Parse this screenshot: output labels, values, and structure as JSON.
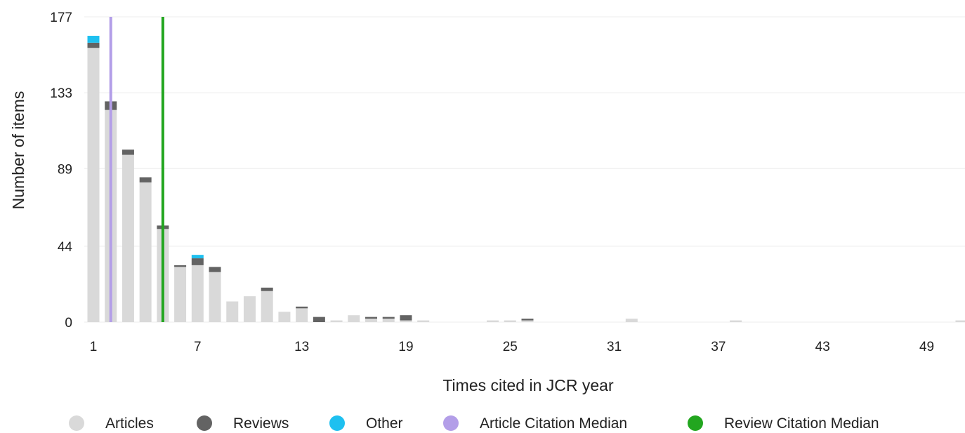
{
  "chart_data": {
    "type": "bar",
    "stacked": true,
    "title": "",
    "xlabel": "Times cited in JCR year",
    "ylabel": "Number of items",
    "x": [
      1,
      2,
      3,
      4,
      5,
      6,
      7,
      8,
      9,
      10,
      11,
      12,
      13,
      14,
      15,
      16,
      17,
      18,
      19,
      20,
      21,
      22,
      23,
      24,
      25,
      26,
      27,
      28,
      29,
      30,
      31,
      32,
      33,
      34,
      35,
      36,
      37,
      38,
      39,
      40,
      41,
      42,
      43,
      44,
      45,
      46,
      47,
      48,
      49,
      50,
      51
    ],
    "xticks": [
      "1",
      "7",
      "13",
      "19",
      "25",
      "31",
      "37",
      "43",
      "49"
    ],
    "yticks": [
      "0",
      "44",
      "89",
      "133",
      "177"
    ],
    "ylim": [
      0,
      177
    ],
    "grid": true,
    "legend_position": "bottom",
    "series": [
      {
        "name": "Articles",
        "color": "#d9d9d9",
        "values": [
          159,
          123,
          97,
          81,
          54,
          32,
          33,
          29,
          12,
          15,
          18,
          6,
          8,
          0,
          1,
          4,
          2,
          2,
          1,
          1,
          0,
          0,
          0,
          1,
          1,
          1,
          0,
          0,
          0,
          0,
          0,
          2,
          0,
          0,
          0,
          0,
          0,
          1,
          0,
          0,
          0,
          0,
          0,
          0,
          0,
          0,
          0,
          0,
          0,
          0,
          1
        ]
      },
      {
        "name": "Reviews",
        "color": "#636363",
        "values": [
          3,
          5,
          3,
          3,
          2,
          1,
          4,
          3,
          0,
          0,
          2,
          0,
          1,
          3,
          0,
          0,
          1,
          1,
          3,
          0,
          0,
          0,
          0,
          0,
          0,
          1,
          0,
          0,
          0,
          0,
          0,
          0,
          0,
          0,
          0,
          0,
          0,
          0,
          0,
          0,
          0,
          0,
          0,
          0,
          0,
          0,
          0,
          0,
          0,
          0,
          0
        ]
      },
      {
        "name": "Other",
        "color": "#1ec0f0",
        "values": [
          4,
          0,
          0,
          0,
          0,
          0,
          2,
          0,
          0,
          0,
          0,
          0,
          0,
          0,
          0,
          0,
          0,
          0,
          0,
          0,
          0,
          0,
          0,
          0,
          0,
          0,
          0,
          0,
          0,
          0,
          0,
          0,
          0,
          0,
          0,
          0,
          0,
          0,
          0,
          0,
          0,
          0,
          0,
          0,
          0,
          0,
          0,
          0,
          0,
          0,
          0
        ]
      }
    ],
    "reference_lines": [
      {
        "name": "Article Citation Median",
        "x": 2,
        "color": "#b39ee8"
      },
      {
        "name": "Review Citation Median",
        "x": 5,
        "color": "#22a61f"
      }
    ]
  }
}
